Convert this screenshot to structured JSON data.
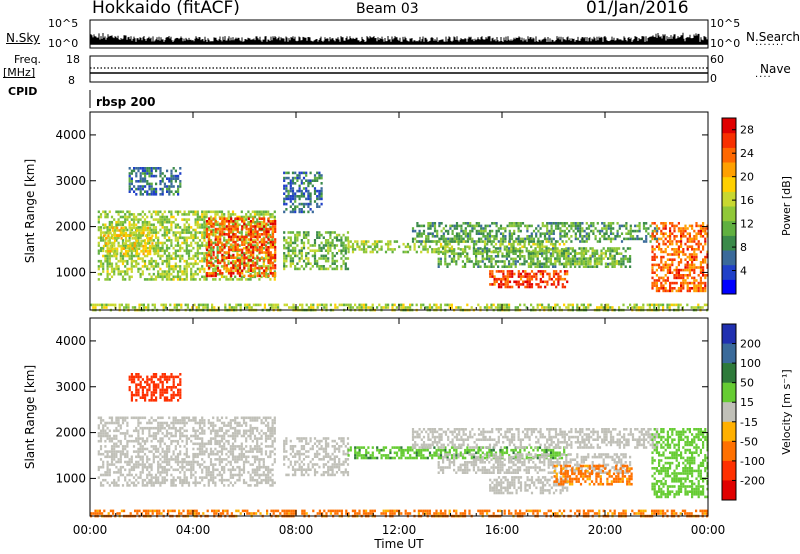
{
  "header": {
    "station": "Hokkaido (fitACF)",
    "beam": "Beam 03",
    "date": "01/Jan/2016"
  },
  "strip_labels": {
    "nsky": "N.Sky",
    "nsky_ticks": [
      "10^5",
      "10^0"
    ],
    "freq_top": "Freq.",
    "freq_unit": "[MHz]",
    "freq_ticks": [
      "18",
      "8"
    ],
    "cpid": "CPID",
    "cpid_value": "rbsp 200",
    "nsearch": "N.Search",
    "nsearch_ticks": [
      "10^5",
      "10^0"
    ],
    "nave": "Nave",
    "nave_ticks": [
      "60",
      "0"
    ]
  },
  "chart_data": [
    {
      "type": "heatmap",
      "panel": "power",
      "ylabel": "Slant Range [km]",
      "x_ticks": [
        "00:00",
        "04:00",
        "08:00",
        "12:00",
        "16:00",
        "20:00",
        "00:00"
      ],
      "y_ticks": [
        "1000",
        "2000",
        "3000",
        "4000"
      ],
      "ylim": [
        180,
        4500
      ],
      "xlim_hours": [
        0,
        24
      ],
      "colorbar": {
        "label": "Power [dB]",
        "ticks": [
          "4",
          "8",
          "12",
          "16",
          "20",
          "24",
          "28"
        ],
        "range": [
          0,
          30
        ],
        "colors": [
          "#0000ff",
          "#2040c8",
          "#3a6a9a",
          "#3a8a4a",
          "#60b040",
          "#90c838",
          "#c8d830",
          "#ffd000",
          "#ffa000",
          "#ff6800",
          "#f83000",
          "#e00000"
        ]
      },
      "regions": [
        {
          "t": [
            0.3,
            7.2
          ],
          "r": [
            850,
            2350
          ],
          "value": 14
        },
        {
          "t": [
            4.5,
            7.2
          ],
          "r": [
            900,
            2200
          ],
          "value": 25
        },
        {
          "t": [
            0.5,
            2.5
          ],
          "r": [
            1400,
            2000
          ],
          "value": 18
        },
        {
          "t": [
            7.5,
            10.0
          ],
          "r": [
            1100,
            1900
          ],
          "value": 12
        },
        {
          "t": [
            10.0,
            18.5
          ],
          "r": [
            1450,
            1700
          ],
          "value": 14
        },
        {
          "t": [
            12.5,
            22.0
          ],
          "r": [
            1700,
            2100
          ],
          "value": 10
        },
        {
          "t": [
            13.5,
            21.0
          ],
          "r": [
            1150,
            1550
          ],
          "value": 11
        },
        {
          "t": [
            15.5,
            18.5
          ],
          "r": [
            700,
            1050
          ],
          "value": 26
        },
        {
          "t": [
            17.0,
            20.5
          ],
          "r": [
            1200,
            1500
          ],
          "value": 13
        },
        {
          "t": [
            1.5,
            3.5
          ],
          "r": [
            2700,
            3300
          ],
          "value": 7
        },
        {
          "t": [
            7.5,
            9.0
          ],
          "r": [
            2300,
            3200
          ],
          "value": 7
        },
        {
          "t": [
            21.8,
            24.0
          ],
          "r": [
            600,
            2100
          ],
          "value": 24
        },
        {
          "t": [
            0.0,
            24.0
          ],
          "r": [
            180,
            320
          ],
          "value": 15
        }
      ]
    },
    {
      "type": "heatmap",
      "panel": "velocity",
      "ylabel": "Slant Range [km]",
      "x_ticks": [
        "00:00",
        "04:00",
        "08:00",
        "12:00",
        "16:00",
        "20:00",
        "00:00"
      ],
      "y_ticks": [
        "1000",
        "2000",
        "3000",
        "4000"
      ],
      "ylim": [
        180,
        4500
      ],
      "xlim_hours": [
        0,
        24
      ],
      "xlabel": "Time UT",
      "colorbar": {
        "label": "Velocity [m s⁻¹]",
        "ticks": [
          "200",
          "100",
          "50",
          "15",
          "-15",
          "-50",
          "-100",
          "-200"
        ],
        "colors": [
          "#2030b0",
          "#3a6a9a",
          "#2e7a3a",
          "#66cc33",
          "#c0c0b8",
          "#ffb000",
          "#ff7000",
          "#ff3000",
          "#e00000"
        ],
        "scale": "piecewise"
      },
      "regions": [
        {
          "t": [
            0.3,
            7.2
          ],
          "r": [
            850,
            2350
          ],
          "value": 0
        },
        {
          "t": [
            7.5,
            10.0
          ],
          "r": [
            1100,
            1900
          ],
          "value": 0
        },
        {
          "t": [
            10.0,
            18.5
          ],
          "r": [
            1450,
            1700
          ],
          "value": 40
        },
        {
          "t": [
            12.5,
            22.0
          ],
          "r": [
            1700,
            2100
          ],
          "value": 0
        },
        {
          "t": [
            13.5,
            21.0
          ],
          "r": [
            1150,
            1550
          ],
          "value": 0
        },
        {
          "t": [
            15.5,
            18.5
          ],
          "r": [
            700,
            1050
          ],
          "value": 0
        },
        {
          "t": [
            18.0,
            21.0
          ],
          "r": [
            900,
            1300
          ],
          "value": -60
        },
        {
          "t": [
            21.8,
            24.0
          ],
          "r": [
            600,
            2100
          ],
          "value": 30
        },
        {
          "t": [
            1.5,
            3.5
          ],
          "r": [
            2700,
            3300
          ],
          "value": -150
        },
        {
          "t": [
            0.0,
            24.0
          ],
          "r": [
            180,
            320
          ],
          "value": -60
        }
      ]
    }
  ]
}
